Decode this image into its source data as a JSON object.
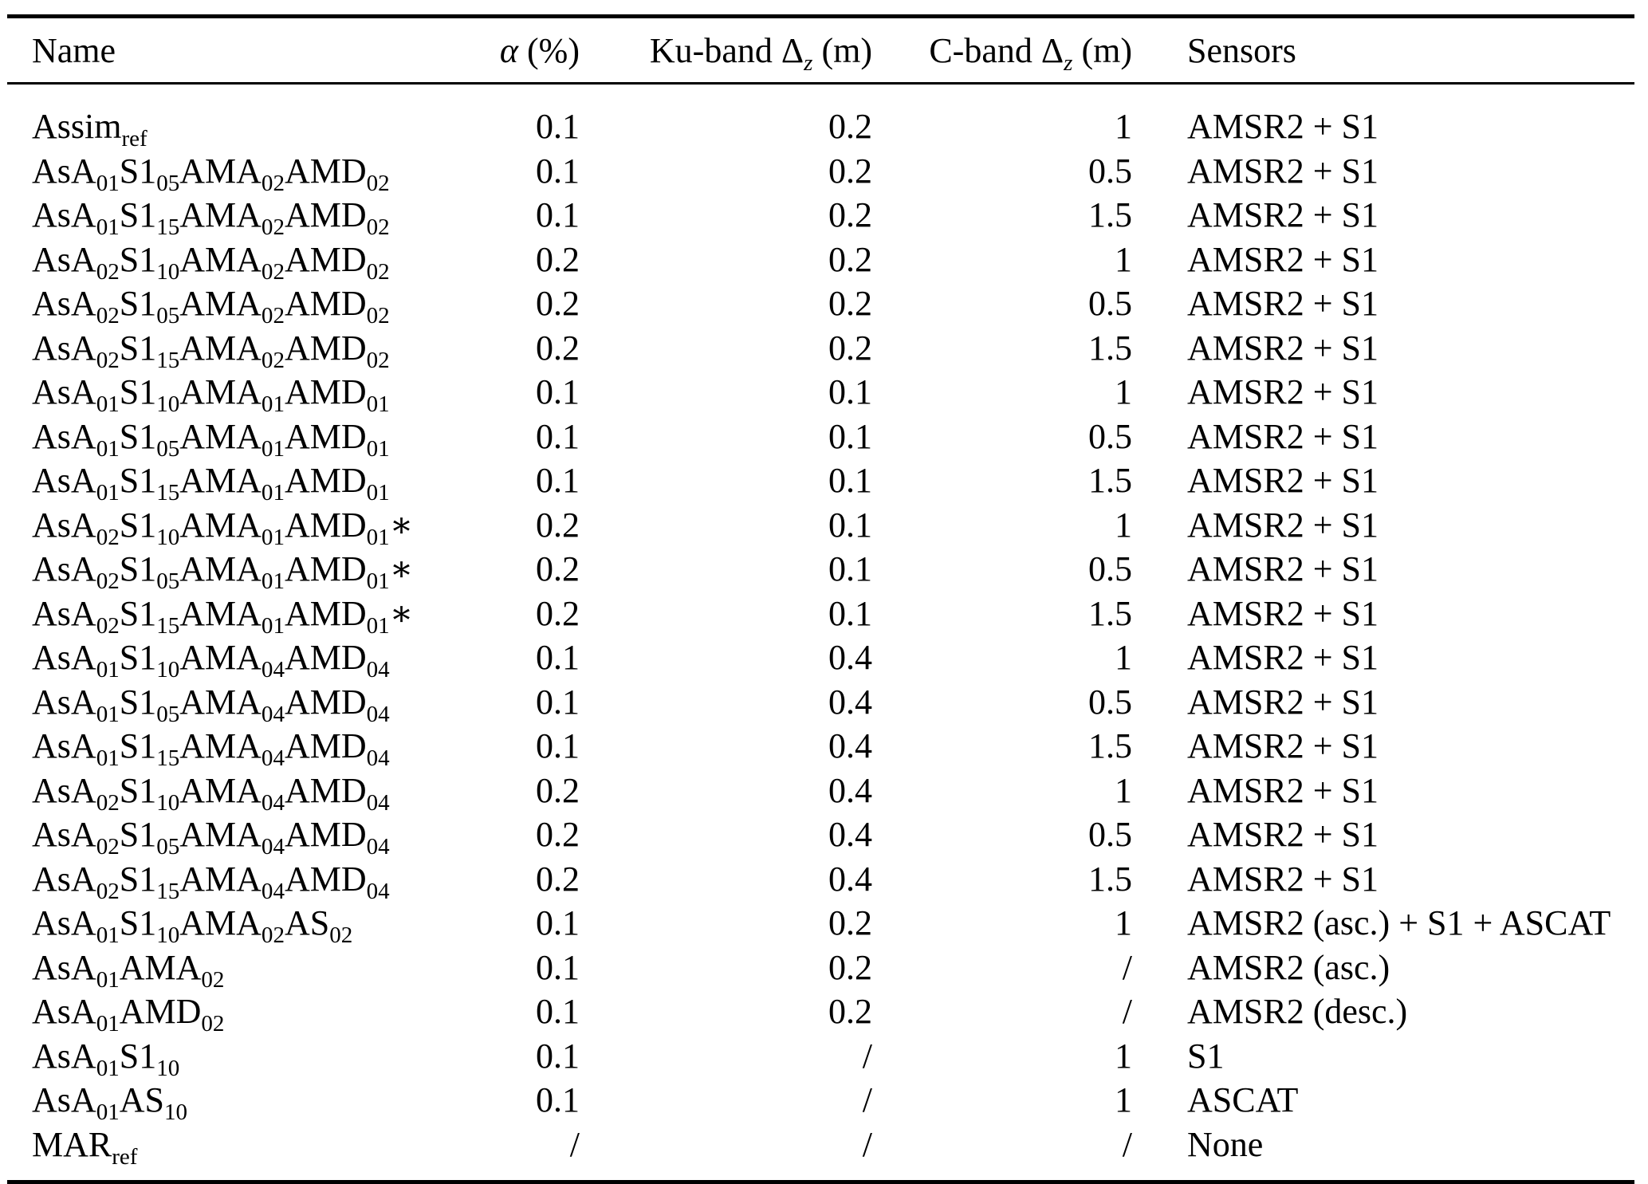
{
  "table": {
    "columns": [
      {
        "key": "name",
        "label": "Name",
        "align": "left"
      },
      {
        "key": "alpha",
        "label": "*α* (%)",
        "align": "right"
      },
      {
        "key": "ku_band_dz",
        "label": "Ku-band Δ_{*z*} (m)",
        "align": "right"
      },
      {
        "key": "c_band_dz",
        "label": "C-band Δ_{*z*} (m)",
        "align": "right"
      },
      {
        "key": "sensors",
        "label": "Sensors",
        "align": "left"
      }
    ],
    "rows": [
      {
        "name": "Assim_{ref}",
        "alpha": "0.1",
        "ku_band_dz": "0.2",
        "c_band_dz": "1",
        "sensors": "AMSR2 + S1"
      },
      {
        "name": "AsA_{01}S1_{05}AMA_{02}AMD_{02}",
        "alpha": "0.1",
        "ku_band_dz": "0.2",
        "c_band_dz": "0.5",
        "sensors": "AMSR2 + S1"
      },
      {
        "name": "AsA_{01}S1_{15}AMA_{02}AMD_{02}",
        "alpha": "0.1",
        "ku_band_dz": "0.2",
        "c_band_dz": "1.5",
        "sensors": "AMSR2 + S1"
      },
      {
        "name": "AsA_{02}S1_{10}AMA_{02}AMD_{02}",
        "alpha": "0.2",
        "ku_band_dz": "0.2",
        "c_band_dz": "1",
        "sensors": "AMSR2 + S1"
      },
      {
        "name": "AsA_{02}S1_{05}AMA_{02}AMD_{02}",
        "alpha": "0.2",
        "ku_band_dz": "0.2",
        "c_band_dz": "0.5",
        "sensors": "AMSR2 + S1"
      },
      {
        "name": "AsA_{02}S1_{15}AMA_{02}AMD_{02}",
        "alpha": "0.2",
        "ku_band_dz": "0.2",
        "c_band_dz": "1.5",
        "sensors": "AMSR2 + S1"
      },
      {
        "name": "AsA_{01}S1_{10}AMA_{01}AMD_{01}",
        "alpha": "0.1",
        "ku_band_dz": "0.1",
        "c_band_dz": "1",
        "sensors": "AMSR2 + S1"
      },
      {
        "name": "AsA_{01}S1_{05}AMA_{01}AMD_{01}",
        "alpha": "0.1",
        "ku_band_dz": "0.1",
        "c_band_dz": "0.5",
        "sensors": "AMSR2 + S1"
      },
      {
        "name": "AsA_{01}S1_{15}AMA_{01}AMD_{01}",
        "alpha": "0.1",
        "ku_band_dz": "0.1",
        "c_band_dz": "1.5",
        "sensors": "AMSR2 + S1"
      },
      {
        "name": "AsA_{02}S1_{10}AMA_{01}AMD_{01}∗",
        "alpha": "0.2",
        "ku_band_dz": "0.1",
        "c_band_dz": "1",
        "sensors": "AMSR2 + S1"
      },
      {
        "name": "AsA_{02}S1_{05}AMA_{01}AMD_{01}∗",
        "alpha": "0.2",
        "ku_band_dz": "0.1",
        "c_band_dz": "0.5",
        "sensors": "AMSR2 + S1"
      },
      {
        "name": "AsA_{02}S1_{15}AMA_{01}AMD_{01}∗",
        "alpha": "0.2",
        "ku_band_dz": "0.1",
        "c_band_dz": "1.5",
        "sensors": "AMSR2 + S1"
      },
      {
        "name": "AsA_{01}S1_{10}AMA_{04}AMD_{04}",
        "alpha": "0.1",
        "ku_band_dz": "0.4",
        "c_band_dz": "1",
        "sensors": "AMSR2 + S1"
      },
      {
        "name": "AsA_{01}S1_{05}AMA_{04}AMD_{04}",
        "alpha": "0.1",
        "ku_band_dz": "0.4",
        "c_band_dz": "0.5",
        "sensors": "AMSR2 + S1"
      },
      {
        "name": "AsA_{01}S1_{15}AMA_{04}AMD_{04}",
        "alpha": "0.1",
        "ku_band_dz": "0.4",
        "c_band_dz": "1.5",
        "sensors": "AMSR2 + S1"
      },
      {
        "name": "AsA_{02}S1_{10}AMA_{04}AMD_{04}",
        "alpha": "0.2",
        "ku_band_dz": "0.4",
        "c_band_dz": "1",
        "sensors": "AMSR2 + S1"
      },
      {
        "name": "AsA_{02}S1_{05}AMA_{04}AMD_{04}",
        "alpha": "0.2",
        "ku_band_dz": "0.4",
        "c_band_dz": "0.5",
        "sensors": "AMSR2 + S1"
      },
      {
        "name": "AsA_{02}S1_{15}AMA_{04}AMD_{04}",
        "alpha": "0.2",
        "ku_band_dz": "0.4",
        "c_band_dz": "1.5",
        "sensors": "AMSR2 + S1"
      },
      {
        "name": "AsA_{01}S1_{10}AMA_{02}AS_{02}",
        "alpha": "0.1",
        "ku_band_dz": "0.2",
        "c_band_dz": "1",
        "sensors": "AMSR2 (asc.) + S1 + ASCAT"
      },
      {
        "name": "AsA_{01}AMA_{02}",
        "alpha": "0.1",
        "ku_band_dz": "0.2",
        "c_band_dz": "/",
        "sensors": "AMSR2 (asc.)"
      },
      {
        "name": "AsA_{01}AMD_{02}",
        "alpha": "0.1",
        "ku_band_dz": "0.2",
        "c_band_dz": "/",
        "sensors": "AMSR2 (desc.)"
      },
      {
        "name": "AsA_{01}S1_{10}",
        "alpha": "0.1",
        "ku_band_dz": "/",
        "c_band_dz": "1",
        "sensors": "S1"
      },
      {
        "name": "AsA_{01}AS_{10}",
        "alpha": "0.1",
        "ku_band_dz": "/",
        "c_band_dz": "1",
        "sensors": "ASCAT"
      },
      {
        "name": "MAR_{ref}",
        "alpha": "/",
        "ku_band_dz": "/",
        "c_band_dz": "/",
        "sensors": "None"
      }
    ]
  },
  "colors": {
    "text": "#000000",
    "background": "#ffffff",
    "rule": "#000000"
  }
}
